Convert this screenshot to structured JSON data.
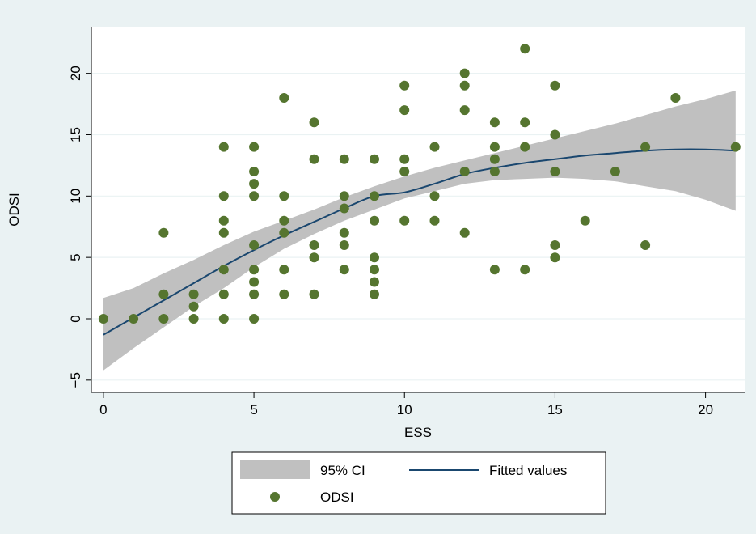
{
  "chart_data": {
    "type": "scatter",
    "title": "",
    "xlabel": "ESS",
    "ylabel": "ODSI",
    "xlim": [
      -0.4,
      21.3
    ],
    "ylim": [
      -6,
      23.8
    ],
    "xticks": [
      0,
      5,
      10,
      15,
      20
    ],
    "yticks": [
      -5,
      0,
      5,
      10,
      15,
      20
    ],
    "grid": true,
    "legend_position": "bottom",
    "colors": {
      "outer_background": "#eaf2f3",
      "plot_background": "#ffffff",
      "gridline": "#eaf2f3",
      "ci_band": "#c0c0c0",
      "fit_line": "#1a476f",
      "marker": "#55752f"
    },
    "series": [
      {
        "name": "ODSI",
        "kind": "scatter",
        "marker": "circle",
        "points": [
          [
            0,
            0
          ],
          [
            1,
            0
          ],
          [
            2,
            0
          ],
          [
            2,
            2
          ],
          [
            2,
            7
          ],
          [
            3,
            0
          ],
          [
            3,
            1
          ],
          [
            3,
            2
          ],
          [
            4,
            0
          ],
          [
            4,
            2
          ],
          [
            4,
            4
          ],
          [
            4,
            7
          ],
          [
            4,
            8
          ],
          [
            4,
            10
          ],
          [
            4,
            14
          ],
          [
            5,
            0
          ],
          [
            5,
            2
          ],
          [
            5,
            3
          ],
          [
            5,
            4
          ],
          [
            5,
            6
          ],
          [
            5,
            10
          ],
          [
            5,
            11
          ],
          [
            5,
            12
          ],
          [
            5,
            14
          ],
          [
            6,
            2
          ],
          [
            6,
            4
          ],
          [
            6,
            7
          ],
          [
            6,
            8
          ],
          [
            6,
            10
          ],
          [
            6,
            18
          ],
          [
            7,
            2
          ],
          [
            7,
            5
          ],
          [
            7,
            6
          ],
          [
            7,
            13
          ],
          [
            7,
            16
          ],
          [
            8,
            4
          ],
          [
            8,
            6
          ],
          [
            8,
            7
          ],
          [
            8,
            9
          ],
          [
            8,
            10
          ],
          [
            8,
            13
          ],
          [
            9,
            2
          ],
          [
            9,
            3
          ],
          [
            9,
            4
          ],
          [
            9,
            5
          ],
          [
            9,
            8
          ],
          [
            9,
            10
          ],
          [
            9,
            13
          ],
          [
            10,
            8
          ],
          [
            10,
            12
          ],
          [
            10,
            13
          ],
          [
            10,
            17
          ],
          [
            10,
            19
          ],
          [
            11,
            8
          ],
          [
            11,
            10
          ],
          [
            11,
            14
          ],
          [
            12,
            7
          ],
          [
            12,
            12
          ],
          [
            12,
            17
          ],
          [
            12,
            19
          ],
          [
            12,
            20
          ],
          [
            13,
            4
          ],
          [
            13,
            12
          ],
          [
            13,
            13
          ],
          [
            13,
            14
          ],
          [
            13,
            16
          ],
          [
            14,
            4
          ],
          [
            14,
            14
          ],
          [
            14,
            16
          ],
          [
            14,
            22
          ],
          [
            15,
            5
          ],
          [
            15,
            6
          ],
          [
            15,
            12
          ],
          [
            15,
            15
          ],
          [
            15,
            19
          ],
          [
            16,
            8
          ],
          [
            17,
            12
          ],
          [
            18,
            6
          ],
          [
            18,
            14
          ],
          [
            19,
            18
          ],
          [
            21,
            14
          ]
        ]
      },
      {
        "name": "Fitted values",
        "kind": "line",
        "x": [
          0,
          1,
          2,
          3,
          4,
          5,
          6,
          7,
          8,
          9,
          10,
          11,
          12,
          13,
          14,
          15,
          16,
          17,
          18,
          19,
          20,
          21
        ],
        "y": [
          -1.3,
          0.1,
          1.5,
          2.9,
          4.3,
          5.6,
          6.8,
          7.9,
          9.0,
          10.0,
          10.3,
          11.0,
          11.8,
          12.3,
          12.7,
          13.0,
          13.3,
          13.5,
          13.7,
          13.8,
          13.8,
          13.7
        ]
      },
      {
        "name": "95% CI",
        "kind": "band",
        "x": [
          0,
          1,
          2,
          3,
          4,
          5,
          6,
          7,
          8,
          9,
          10,
          11,
          12,
          13,
          14,
          15,
          16,
          17,
          18,
          19,
          20,
          21
        ],
        "lower": [
          -4.2,
          -2.4,
          -0.7,
          1.0,
          2.5,
          4.2,
          5.7,
          6.9,
          8.0,
          8.9,
          9.8,
          10.4,
          11.0,
          11.3,
          11.4,
          11.5,
          11.4,
          11.2,
          10.8,
          10.4,
          9.7,
          8.8
        ],
        "upper": [
          1.7,
          2.5,
          3.7,
          4.8,
          6.0,
          7.1,
          8.0,
          8.9,
          9.9,
          10.8,
          11.6,
          12.3,
          12.9,
          13.5,
          14.1,
          14.7,
          15.3,
          15.9,
          16.6,
          17.3,
          17.9,
          18.6
        ]
      }
    ]
  },
  "legend": {
    "ci_label": "95% CI",
    "fit_label": "Fitted values",
    "scatter_label": "ODSI"
  }
}
